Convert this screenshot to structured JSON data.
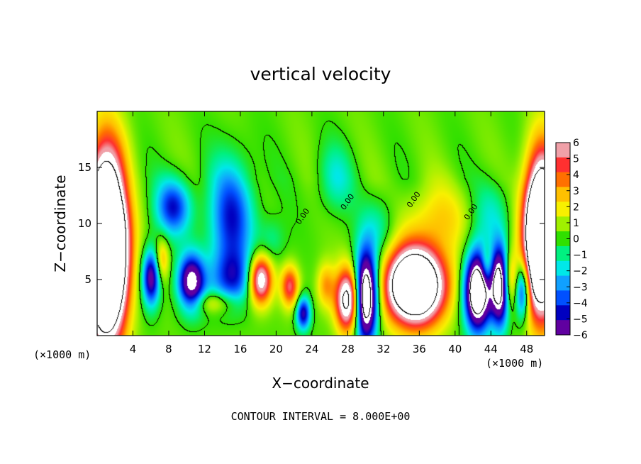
{
  "chart_data": {
    "type": "heatmap",
    "title": "vertical velocity",
    "xlabel": "X−coordinate",
    "ylabel": "Z−coordinate",
    "x_unit_left": "(×1000 m)",
    "x_unit_right": "(×1000 m)",
    "footer": "CONTOUR INTERVAL = 8.000E+00",
    "xlim": [
      0,
      50
    ],
    "ylim": [
      0,
      20
    ],
    "x_ticks": [
      4,
      8,
      12,
      16,
      20,
      24,
      28,
      32,
      36,
      40,
      44,
      48
    ],
    "x_tick_labels": [
      "4",
      "8",
      "12",
      "16",
      "20",
      "24",
      "28",
      "32",
      "36",
      "40",
      "44",
      "48"
    ],
    "y_ticks": [
      5,
      10,
      15
    ],
    "y_tick_labels": [
      "5",
      "10",
      "15"
    ],
    "colorbar": {
      "min": -6,
      "max": 6,
      "ticks": [
        6,
        5,
        4,
        3,
        2,
        1,
        0,
        -1,
        -2,
        -3,
        -4,
        -5,
        -6
      ],
      "tick_labels": [
        "6",
        "5",
        "4",
        "3",
        "2",
        "1",
        "0",
        "−1",
        "−2",
        "−3",
        "−4",
        "−5",
        "−6"
      ],
      "colors": [
        "#f0a0a8",
        "#ff3030",
        "#ff7000",
        "#ffc000",
        "#f8f000",
        "#a0f000",
        "#30e000",
        "#00f080",
        "#00e8e8",
        "#10a0ff",
        "#0050ff",
        "#0000c0",
        "#6000a0"
      ]
    },
    "contour_labels": [
      {
        "text": "0.00",
        "x": 23.2,
        "y": 10.5
      },
      {
        "text": "0.00",
        "x": 28.2,
        "y": 11.8
      },
      {
        "text": "0.00",
        "x": 35.6,
        "y": 12.0
      },
      {
        "text": "0.00",
        "x": 42.0,
        "y": 10.9
      }
    ],
    "features": [
      {
        "x": 1.0,
        "z": 8.0,
        "w": 22,
        "sx": 2.2,
        "sz": 7.5
      },
      {
        "x": 49.6,
        "z": 9.0,
        "w": 18,
        "sx": 1.8,
        "sz": 6.5
      },
      {
        "x": 35.5,
        "z": 4.5,
        "w": 14,
        "sx": 3.3,
        "sz": 3.4
      },
      {
        "x": 28.0,
        "z": 3.2,
        "w": 9,
        "sx": 1.4,
        "sz": 2.8
      },
      {
        "x": 18.2,
        "z": 5.0,
        "w": 8,
        "sx": 1.3,
        "sz": 2.2
      },
      {
        "x": 21.5,
        "z": 4.4,
        "w": 5,
        "sx": 1.0,
        "sz": 1.8
      },
      {
        "x": 7.2,
        "z": 6.8,
        "w": 3,
        "sx": 0.8,
        "sz": 2.0
      },
      {
        "x": 25.5,
        "z": 4.5,
        "w": 3,
        "sx": 1.0,
        "sz": 2.0
      },
      {
        "x": 46.0,
        "z": 5.0,
        "w": 4,
        "sx": 0.9,
        "sz": 2.5
      },
      {
        "x": 43.5,
        "z": 6.2,
        "w": 3,
        "sx": 0.7,
        "sz": 1.8
      },
      {
        "x": 13.0,
        "z": 3.0,
        "w": 2.5,
        "sx": 2.5,
        "sz": 1.0
      },
      {
        "x": 38.0,
        "z": 10.5,
        "w": 2,
        "sx": 4.0,
        "sz": 3.0
      },
      {
        "x": 6.0,
        "z": 5.2,
        "w": -7,
        "sx": 1.0,
        "sz": 2.5
      },
      {
        "x": 10.5,
        "z": 4.8,
        "w": -8,
        "sx": 1.5,
        "sz": 2.5
      },
      {
        "x": 8.5,
        "z": 11.5,
        "w": -5,
        "sx": 2.0,
        "sz": 2.5
      },
      {
        "x": 15.0,
        "z": 10.5,
        "w": -5,
        "sx": 2.5,
        "sz": 5.0
      },
      {
        "x": 15.0,
        "z": 5.0,
        "w": -4,
        "sx": 2.5,
        "sz": 2.5
      },
      {
        "x": 23.0,
        "z": 2.0,
        "w": -6,
        "sx": 0.8,
        "sz": 1.5
      },
      {
        "x": 30.0,
        "z": 3.5,
        "w": -12,
        "sx": 1.3,
        "sz": 4.0
      },
      {
        "x": 31.5,
        "z": 9.5,
        "w": -2,
        "sx": 2.0,
        "sz": 3.0
      },
      {
        "x": 42.5,
        "z": 4.0,
        "w": -12,
        "sx": 1.5,
        "sz": 3.5
      },
      {
        "x": 45.0,
        "z": 4.5,
        "w": -10,
        "sx": 1.0,
        "sz": 3.5
      },
      {
        "x": 47.5,
        "z": 4.0,
        "w": -6,
        "sx": 0.8,
        "sz": 2.5
      },
      {
        "x": 19.5,
        "z": 8.5,
        "w": -1.5,
        "sx": 1.5,
        "sz": 2.0
      },
      {
        "x": 26.5,
        "z": 14.0,
        "w": -2,
        "sx": 2.0,
        "sz": 3.0
      },
      {
        "x": 44.0,
        "z": 11.0,
        "w": -2,
        "sx": 2.0,
        "sz": 3.0
      },
      {
        "x": 2.5,
        "z": 13.0,
        "w": -1.2,
        "sx": 2.0,
        "sz": 3.0
      }
    ]
  }
}
